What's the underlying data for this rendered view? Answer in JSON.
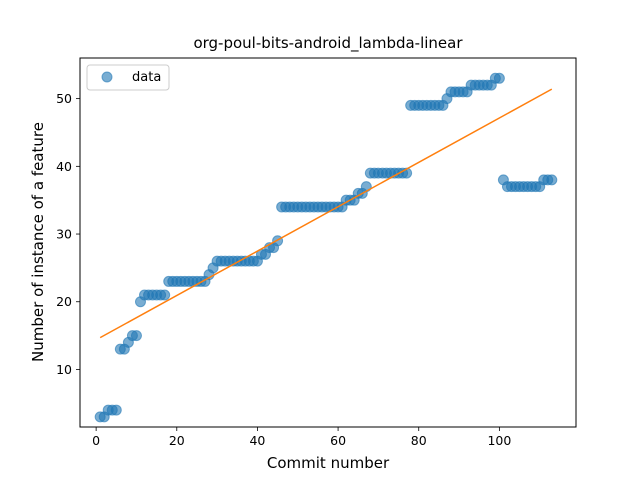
{
  "chart_data": {
    "type": "scatter",
    "title": "org-poul-bits-android_lambda-linear",
    "xlabel": "Commit number",
    "ylabel": "Number of instance of a feature",
    "xlim": [
      -4,
      119
    ],
    "ylim": [
      1.5,
      56
    ],
    "xticks": [
      0,
      20,
      40,
      60,
      80,
      100
    ],
    "yticks": [
      10,
      20,
      30,
      40,
      50
    ],
    "legend_position": "upper-left",
    "grid": false,
    "colors": {
      "points": "#1f77b4",
      "fit": "#ff7f0e"
    },
    "series": [
      {
        "name": "data",
        "marker": "circle",
        "x": [
          1,
          2,
          3,
          4,
          5,
          6,
          7,
          8,
          9,
          10,
          11,
          12,
          13,
          14,
          15,
          16,
          17,
          18,
          19,
          20,
          21,
          22,
          23,
          24,
          25,
          26,
          27,
          28,
          29,
          30,
          31,
          32,
          33,
          34,
          35,
          36,
          37,
          38,
          39,
          40,
          41,
          42,
          43,
          44,
          45,
          46,
          47,
          48,
          49,
          50,
          51,
          52,
          53,
          54,
          55,
          56,
          57,
          58,
          59,
          60,
          61,
          62,
          63,
          64,
          65,
          66,
          67,
          68,
          69,
          70,
          71,
          72,
          73,
          74,
          75,
          76,
          77,
          78,
          79,
          80,
          81,
          82,
          83,
          84,
          85,
          86,
          87,
          88,
          89,
          90,
          91,
          92,
          93,
          94,
          95,
          96,
          97,
          98,
          99,
          100,
          101,
          102,
          103,
          104,
          105,
          106,
          107,
          108,
          109,
          110,
          111,
          112,
          113
        ],
        "y": [
          3,
          3,
          4,
          4,
          4,
          13,
          13,
          14,
          15,
          15,
          20,
          21,
          21,
          21,
          21,
          21,
          21,
          23,
          23,
          23,
          23,
          23,
          23,
          23,
          23,
          23,
          23,
          24,
          25,
          26,
          26,
          26,
          26,
          26,
          26,
          26,
          26,
          26,
          26,
          26,
          27,
          27,
          28,
          28,
          29,
          34,
          34,
          34,
          34,
          34,
          34,
          34,
          34,
          34,
          34,
          34,
          34,
          34,
          34,
          34,
          34,
          35,
          35,
          35,
          36,
          36,
          37,
          39,
          39,
          39,
          39,
          39,
          39,
          39,
          39,
          39,
          39,
          49,
          49,
          49,
          49,
          49,
          49,
          49,
          49,
          49,
          50,
          51,
          51,
          51,
          51,
          51,
          52,
          52,
          52,
          52,
          52,
          52,
          53,
          53,
          38,
          37,
          37,
          37,
          37,
          37,
          37,
          37,
          37,
          37,
          38,
          38,
          38
        ]
      },
      {
        "name": "",
        "type": "line",
        "x": [
          1,
          113
        ],
        "y": [
          14.7,
          51.4
        ]
      }
    ]
  }
}
